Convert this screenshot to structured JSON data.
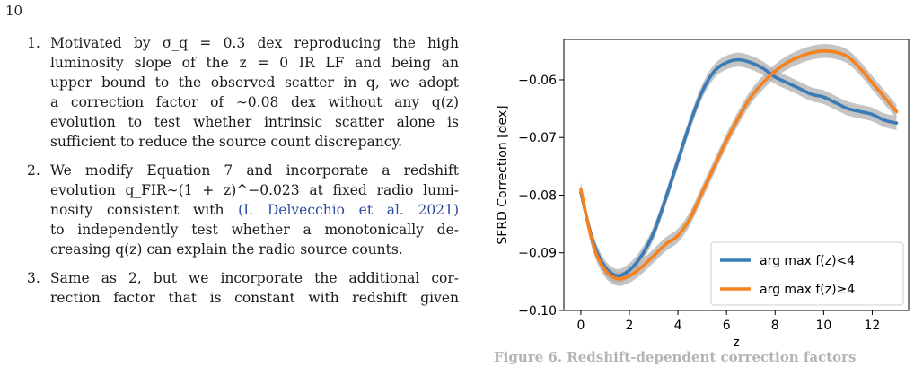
{
  "page_number": "10",
  "list": {
    "items": [
      {
        "number": "1.",
        "lines": [
          "Motivated by σ_q = 0.3 dex reproducing the high",
          "luminosity slope of the z = 0 IR LF and being an",
          "upper bound to the observed scatter in q, we adopt",
          "a correction factor of ∼0.08 dex without any q(z)",
          "evolution to test whether intrinsic scatter alone is",
          "sufficient to reduce the source count discrepancy."
        ]
      },
      {
        "number": "2.",
        "lines": [
          "We modify Equation 7 and incorporate a redshift",
          "evolution q_FIR∼(1 + z)^−0.023 at fixed radio lumi-",
          "nosity consistent with (I. Delvecchio et al. 2021)",
          "to independently test whether a monotonically de-",
          "creasing q(z) can explain the radio source counts."
        ],
        "link_text": "(I. Delvecchio et al. 2021)"
      },
      {
        "number": "3.",
        "lines": [
          "Same as 2, but we incorporate the additional cor-",
          "rection factor that is constant with redshift given"
        ]
      }
    ]
  },
  "caption": "Figure 6.   Redshift-dependent correction factors",
  "chart_data": {
    "type": "line",
    "xlabel": "z",
    "ylabel": "SFRD Correction [dex]",
    "xlim": [
      -0.7,
      13.5
    ],
    "ylim": [
      -0.1,
      -0.053
    ],
    "xticks": [
      0,
      2,
      4,
      6,
      8,
      10,
      12
    ],
    "yticks": [
      -0.1,
      -0.09,
      -0.08,
      -0.07,
      -0.06
    ],
    "ytick_labels": [
      "−0.10",
      "−0.09",
      "−0.08",
      "−0.07",
      "−0.06"
    ],
    "grid": false,
    "legend_position": "lower-right",
    "series": [
      {
        "name": "arg max f(z)<4",
        "legend_main": "arg max f(z)<4",
        "color": "#3a7ab7",
        "x": [
          0,
          0.5,
          1,
          1.5,
          2,
          2.5,
          3,
          3.5,
          4,
          4.5,
          5,
          5.5,
          6,
          6.5,
          7,
          7.5,
          8,
          8.5,
          9,
          9.5,
          10,
          10.5,
          11,
          11.5,
          12,
          12.5,
          13
        ],
        "y": [
          -0.0795,
          -0.088,
          -0.0925,
          -0.094,
          -0.093,
          -0.0905,
          -0.0865,
          -0.0805,
          -0.074,
          -0.0675,
          -0.062,
          -0.0585,
          -0.057,
          -0.0565,
          -0.057,
          -0.058,
          -0.0595,
          -0.0605,
          -0.0615,
          -0.0625,
          -0.063,
          -0.064,
          -0.065,
          -0.0655,
          -0.066,
          -0.067,
          -0.0675
        ],
        "band": 0.0012
      },
      {
        "name": "arg max f(z)≥4",
        "legend_main": "arg max f(z)≥4",
        "color": "#f5821f",
        "x": [
          0,
          0.5,
          1,
          1.5,
          2,
          2.5,
          3,
          3.5,
          4,
          4.5,
          5,
          5.5,
          6,
          6.5,
          7,
          7.5,
          8,
          8.5,
          9,
          9.5,
          10,
          10.5,
          11,
          11.5,
          12,
          12.5,
          13
        ],
        "y": [
          -0.079,
          -0.0885,
          -0.093,
          -0.0945,
          -0.094,
          -0.0925,
          -0.0905,
          -0.0885,
          -0.087,
          -0.084,
          -0.0795,
          -0.075,
          -0.0705,
          -0.0665,
          -0.063,
          -0.0605,
          -0.0585,
          -0.057,
          -0.056,
          -0.0553,
          -0.055,
          -0.0552,
          -0.056,
          -0.058,
          -0.0605,
          -0.063,
          -0.0655
        ],
        "band": 0.0012
      }
    ]
  }
}
